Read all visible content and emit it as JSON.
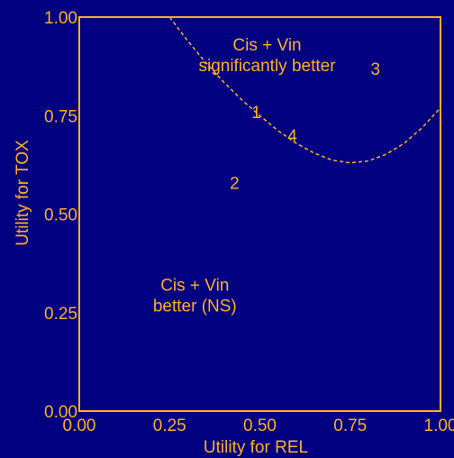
{
  "colors": {
    "background": "#000080",
    "foreground": "#FFB020"
  },
  "chart_data": {
    "type": "scatter",
    "xlabel": "Utility for REL",
    "ylabel": "Utility for TOX",
    "xlim": [
      0,
      1
    ],
    "ylim": [
      0,
      1
    ],
    "xticks": [
      "0.00",
      "0.25",
      "0.50",
      "0.75",
      "1.00"
    ],
    "yticks": [
      "0.00",
      "0.25",
      "0.50",
      "0.75",
      "1.00"
    ],
    "grid": false,
    "points": [
      {
        "label": "1",
        "x": 0.49,
        "y": 0.76
      },
      {
        "label": "2",
        "x": 0.43,
        "y": 0.58
      },
      {
        "label": "3",
        "x": 0.82,
        "y": 0.87
      },
      {
        "label": "4",
        "x": 0.59,
        "y": 0.7
      }
    ],
    "boundary_curve": {
      "style": "dashed",
      "x": [
        0.25,
        0.3,
        0.35,
        0.4,
        0.45,
        0.5,
        0.55,
        0.6,
        0.65,
        0.7,
        0.75,
        0.8,
        0.85,
        0.9,
        0.95,
        1.0
      ],
      "y": [
        1.0,
        0.94,
        0.885,
        0.835,
        0.79,
        0.75,
        0.712,
        0.68,
        0.655,
        0.637,
        0.63,
        0.635,
        0.652,
        0.68,
        0.72,
        0.77
      ]
    },
    "annotations": [
      {
        "lines": [
          "Cis + Vin",
          "significantly better"
        ],
        "x": 0.52,
        "y": 0.915
      },
      {
        "lines": [
          "Cis + Vin",
          "better (NS)"
        ],
        "x": 0.32,
        "y": 0.305
      }
    ]
  }
}
